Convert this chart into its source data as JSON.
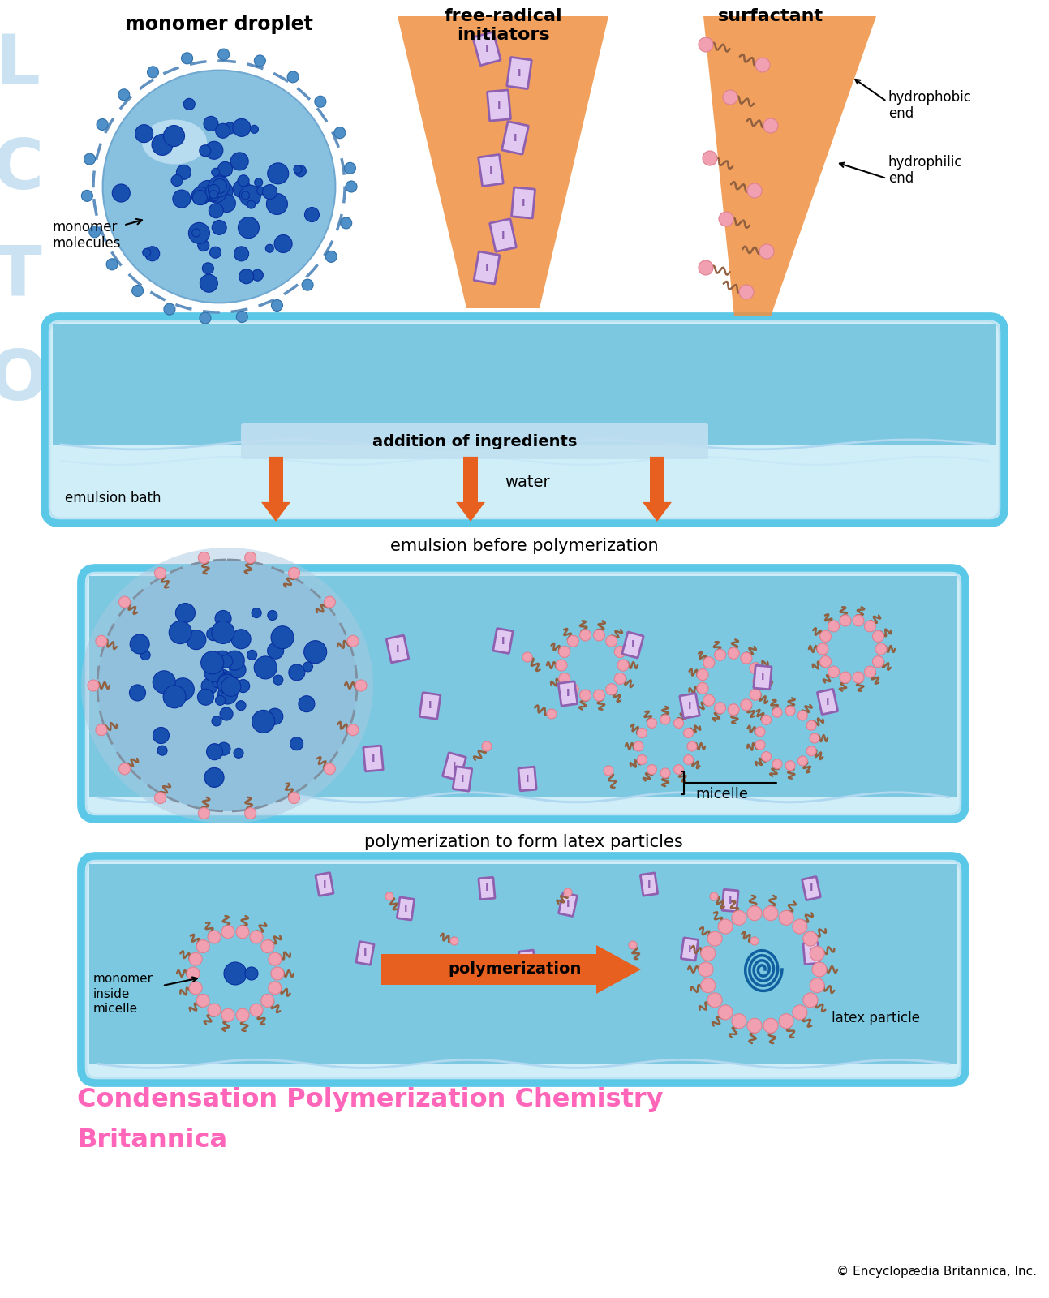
{
  "bg_color": "#ffffff",
  "copyright": "© Encyclopædia Britannica, Inc.",
  "panel1_caption": "emulsion before polymerization",
  "panel2_caption": "polymerization to form latex particles",
  "label_monomer_droplet": "monomer droplet",
  "label_free_radical": "free-radical\ninitiators",
  "label_surfactant": "surfactant",
  "label_monomer_molecules": "monomer\nmolecules",
  "label_hydrophobic": "hydrophobic\nend",
  "label_hydrophilic": "hydrophilic\nend",
  "label_addition": "addition of ingredients",
  "label_water": "water",
  "label_emulsion_bath": "emulsion bath",
  "label_micelle": "micelle",
  "label_polymerization": "polymerization",
  "label_monomer_inside": "monomer\ninside\nmicelle",
  "label_latex_particle": "latex particle",
  "wm_color": "#C5DFF0",
  "tank_edge_color": "#5BC8E8",
  "tank_face_color": "#D0EEF8",
  "water_color": "#7CC8E0",
  "orange_arrow": "#E86020",
  "initiator_fill": "#E0C8F0",
  "initiator_edge": "#9060B0",
  "surfactant_head": "#F0A0B0",
  "surfactant_tail": "#906040",
  "blue_dot_fill": "#1850B0",
  "blue_dot_edge": "#0830A0",
  "droplet_fill": "#88C0E0",
  "droplet_dashed": "#6090C0",
  "pink_title": "#FF50B0",
  "latex_chain": "#1060A0"
}
